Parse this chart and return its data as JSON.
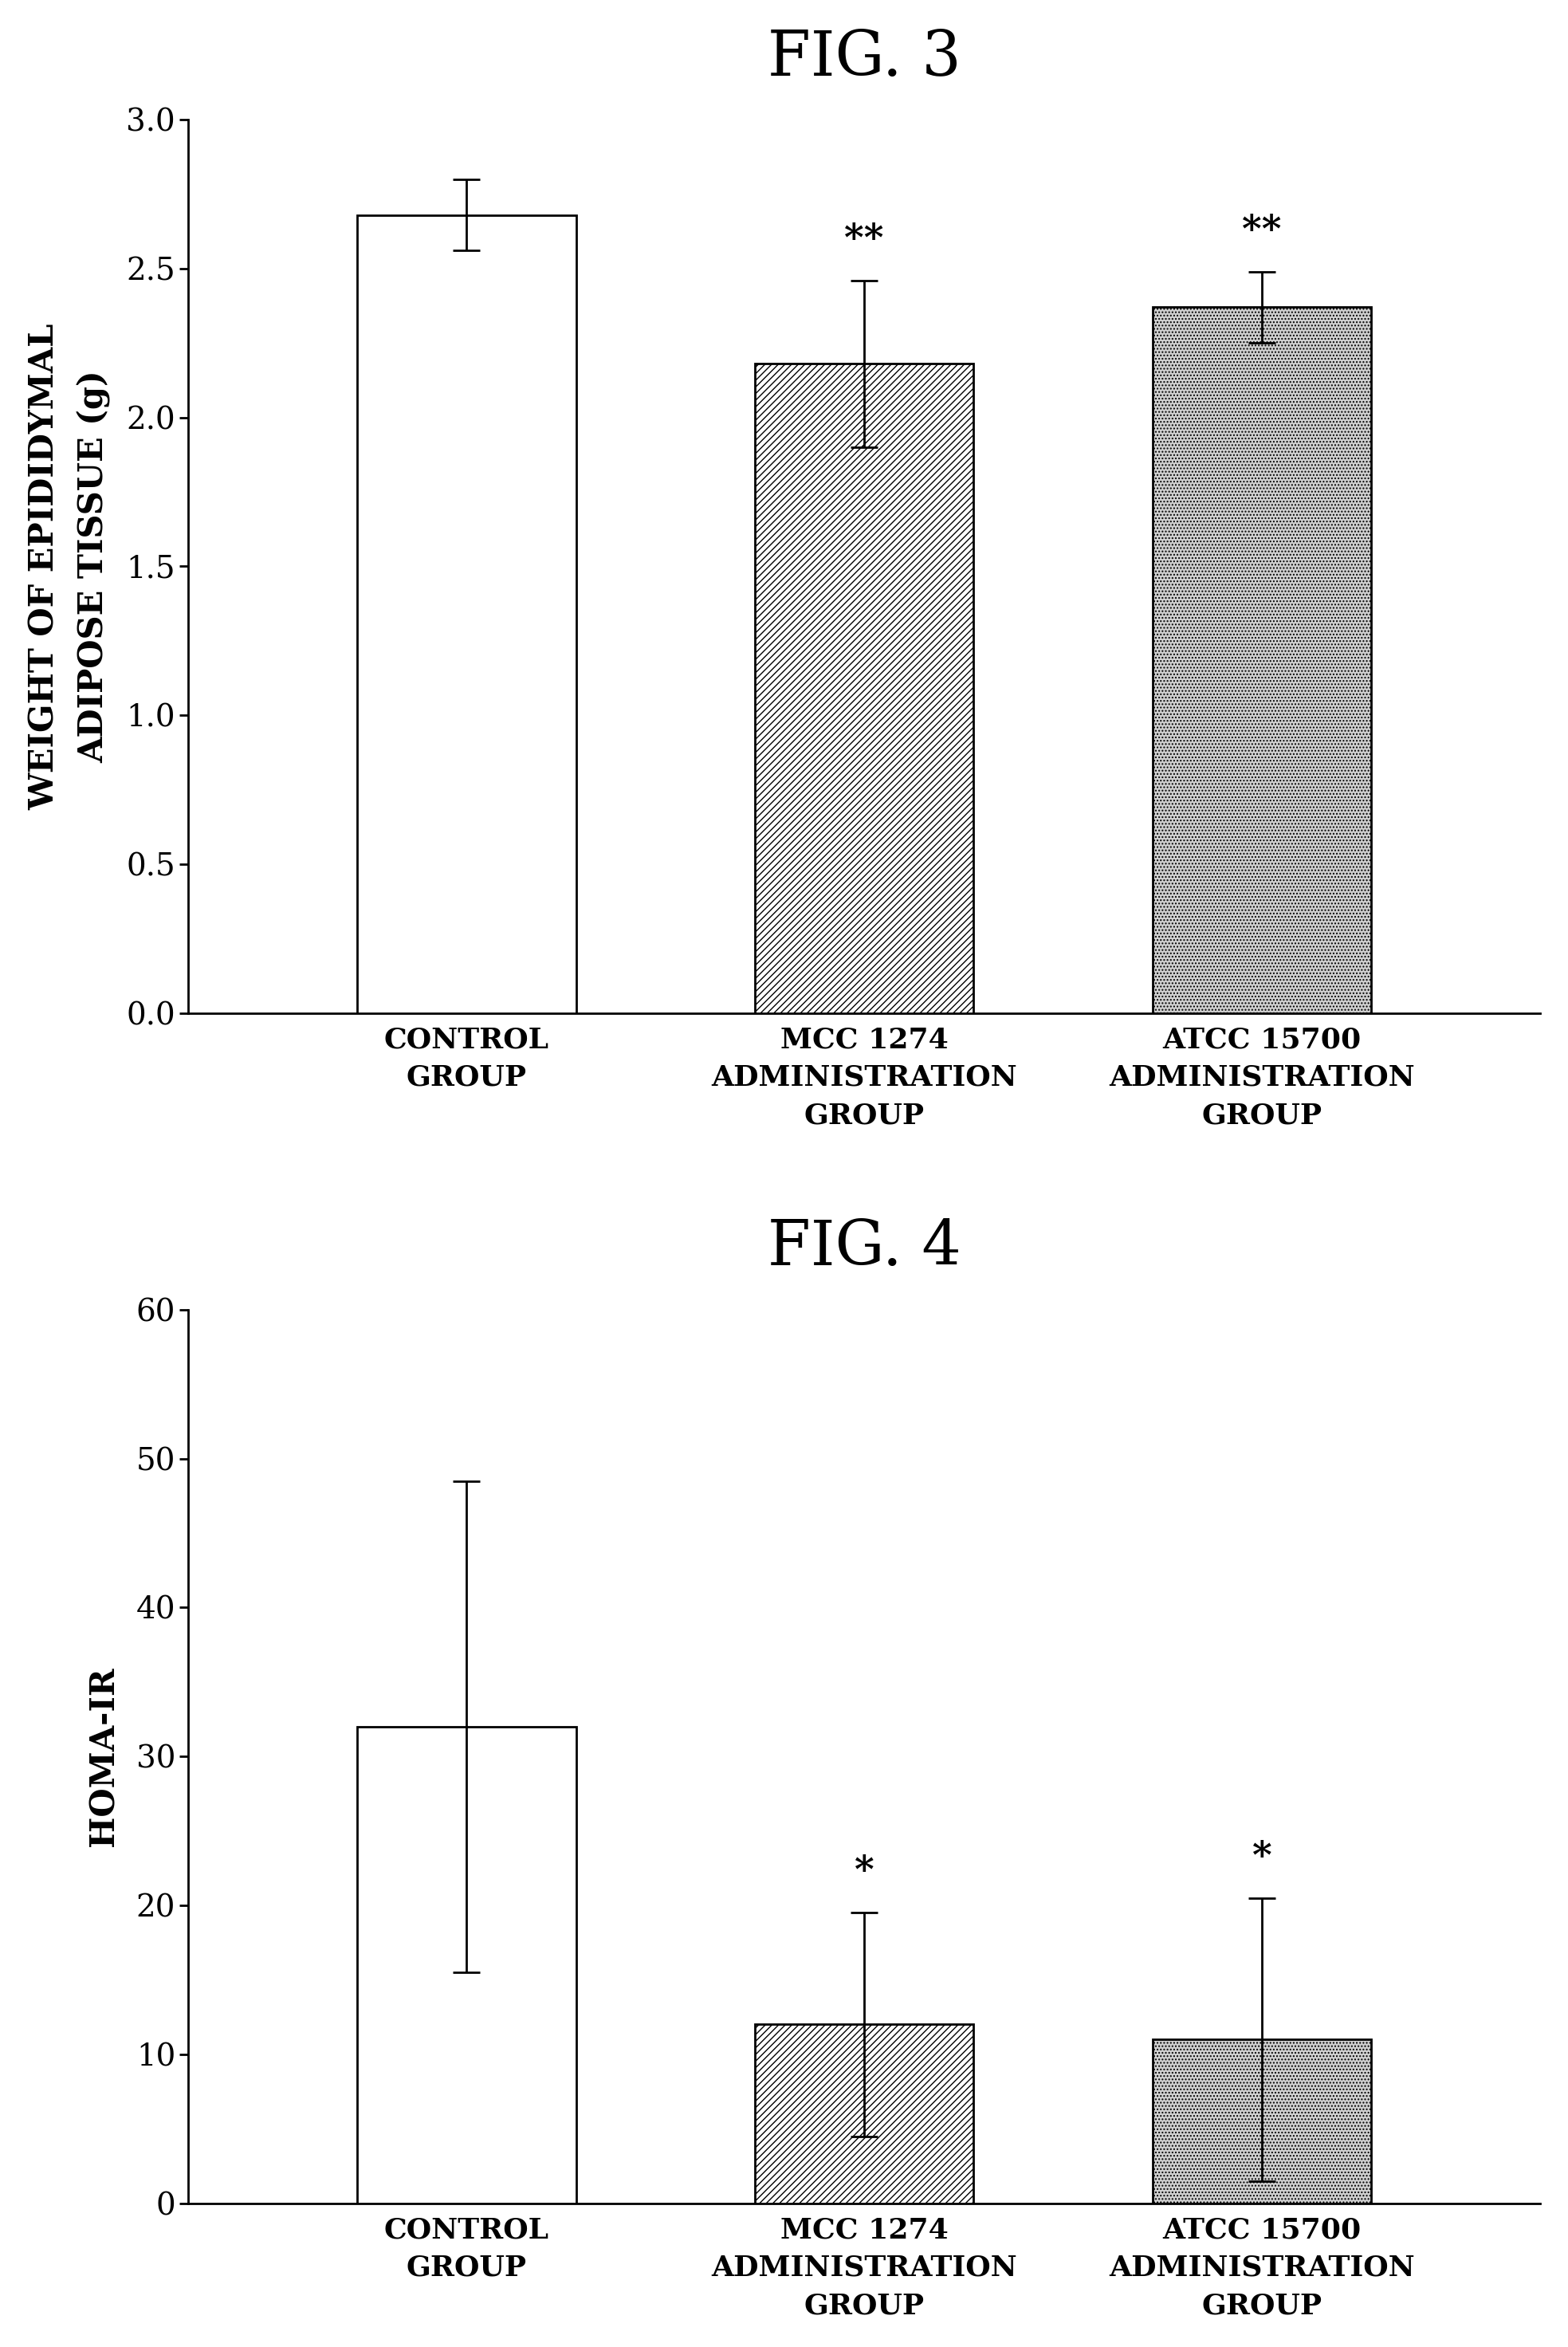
{
  "fig3": {
    "title": "FIG. 3",
    "ylabel": "WEIGHT OF EPIDIDYMAL\nADIPOSE TISSUE (g)",
    "categories": [
      "CONTROL\nGROUP",
      "MCC 1274\nADMINISTRATION\nGROUP",
      "ATCC 15700\nADMINISTRATION\nGROUP"
    ],
    "values": [
      2.68,
      2.18,
      2.37
    ],
    "errors": [
      0.12,
      0.28,
      0.12
    ],
    "ylim": [
      0.0,
      3.0
    ],
    "yticks": [
      0.0,
      0.5,
      1.0,
      1.5,
      2.0,
      2.5,
      3.0
    ],
    "ytick_labels": [
      "0.0",
      "0.5",
      "1.0",
      "1.5",
      "2.0",
      "2.5",
      "3.0"
    ],
    "significance": [
      "",
      "**",
      "**"
    ],
    "bar_colors": [
      "white",
      "white",
      "white"
    ],
    "bar_hatches": [
      "",
      "////",
      "...."
    ],
    "bar_edgecolors": [
      "black",
      "black",
      "black"
    ]
  },
  "fig4": {
    "title": "FIG. 4",
    "ylabel": "HOMA-IR",
    "categories": [
      "CONTROL\nGROUP",
      "MCC 1274\nADMINISTRATION\nGROUP",
      "ATCC 15700\nADMINISTRATION\nGROUP"
    ],
    "values": [
      32.0,
      12.0,
      11.0
    ],
    "errors": [
      16.5,
      7.5,
      9.5
    ],
    "ylim": [
      0,
      60
    ],
    "yticks": [
      0,
      10,
      20,
      30,
      40,
      50,
      60
    ],
    "ytick_labels": [
      "0",
      "10",
      "20",
      "30",
      "40",
      "50",
      "60"
    ],
    "significance": [
      "",
      "*",
      "*"
    ],
    "bar_colors": [
      "white",
      "white",
      "white"
    ],
    "bar_hatches": [
      "",
      "////",
      "...."
    ],
    "bar_edgecolors": [
      "black",
      "black",
      "black"
    ]
  },
  "figure_bg": "white",
  "bar_width": 0.55,
  "fontsize_title": 56,
  "fontsize_ylabel": 30,
  "fontsize_tick": 28,
  "fontsize_xticklabel": 26,
  "fontsize_sig": 34
}
